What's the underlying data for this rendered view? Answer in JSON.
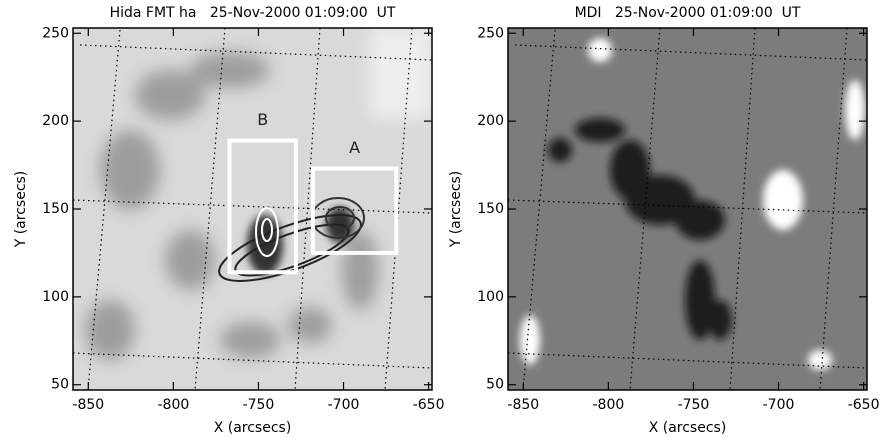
{
  "chart_data": [
    {
      "type": "image",
      "title": "Hida FMT ha   25-Nov-2000 01:09:00  UT",
      "xlabel": "X (arcsecs)",
      "ylabel": "Y (arcsecs)",
      "xlim": [
        -859,
        -648
      ],
      "ylim": [
        47,
        253
      ],
      "xticks": [
        -850,
        -800,
        -750,
        -700,
        -650
      ],
      "yticks": [
        50,
        100,
        150,
        200,
        250
      ],
      "regions": [
        {
          "label": "A",
          "x": [
            -718,
            -669
          ],
          "y": [
            125,
            173
          ]
        },
        {
          "label": "B",
          "x": [
            -767,
            -728
          ],
          "y": [
            114,
            189
          ]
        }
      ]
    },
    {
      "type": "image",
      "title": "MDI   25-Nov-2000 01:09:00  UT",
      "xlabel": "X (arcsecs)",
      "ylabel": "Y (arcsecs)",
      "xlim": [
        -859,
        -648
      ],
      "ylim": [
        47,
        253
      ],
      "xticks": [
        -850,
        -800,
        -750,
        -700,
        -650
      ],
      "yticks": [
        50,
        100,
        150,
        200,
        250
      ],
      "regions": []
    }
  ]
}
